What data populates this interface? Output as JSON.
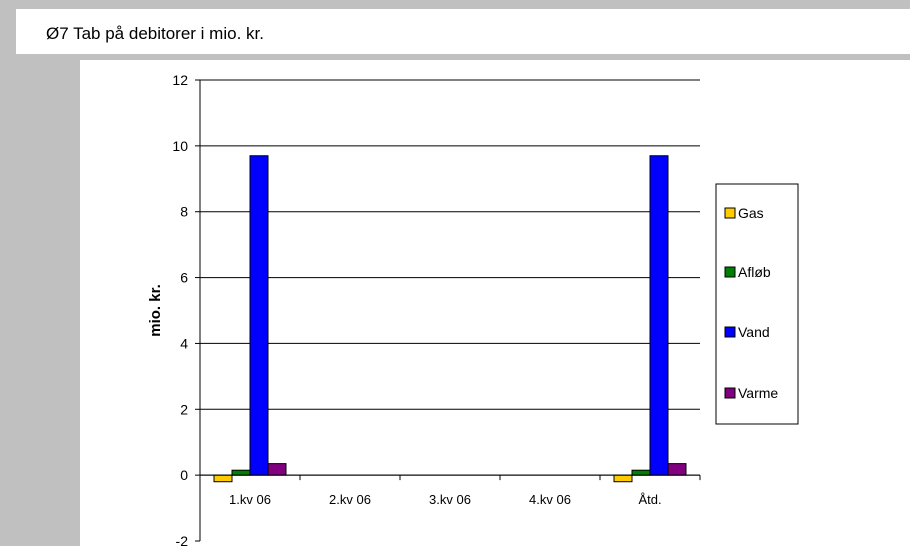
{
  "title": "Ø7 Tab på debitorer i mio. kr.",
  "colors": {
    "Gas": "#ffcc00",
    "Afløb": "#008000",
    "Vand": "#0000ff",
    "Varme": "#800080"
  },
  "chart_data": {
    "type": "bar",
    "title": "Ø7 Tab på debitorer i mio. kr.",
    "xlabel": "",
    "ylabel": "mio. kr.",
    "ylim": [
      -2,
      12
    ],
    "yticks": [
      -2,
      0,
      2,
      4,
      6,
      8,
      10,
      12
    ],
    "grid": true,
    "legend_position": "right",
    "categories": [
      "1.kv 06",
      "2.kv 06",
      "3.kv 06",
      "4.kv 06",
      "Åtd."
    ],
    "series": [
      {
        "name": "Gas",
        "values": [
          -0.2,
          0,
          0,
          0,
          -0.2
        ]
      },
      {
        "name": "Afløb",
        "values": [
          0.15,
          0,
          0,
          0,
          0.15
        ]
      },
      {
        "name": "Vand",
        "values": [
          9.7,
          0,
          0,
          0,
          9.7
        ]
      },
      {
        "name": "Varme",
        "values": [
          0.35,
          0,
          0,
          0,
          0.35
        ]
      }
    ]
  }
}
